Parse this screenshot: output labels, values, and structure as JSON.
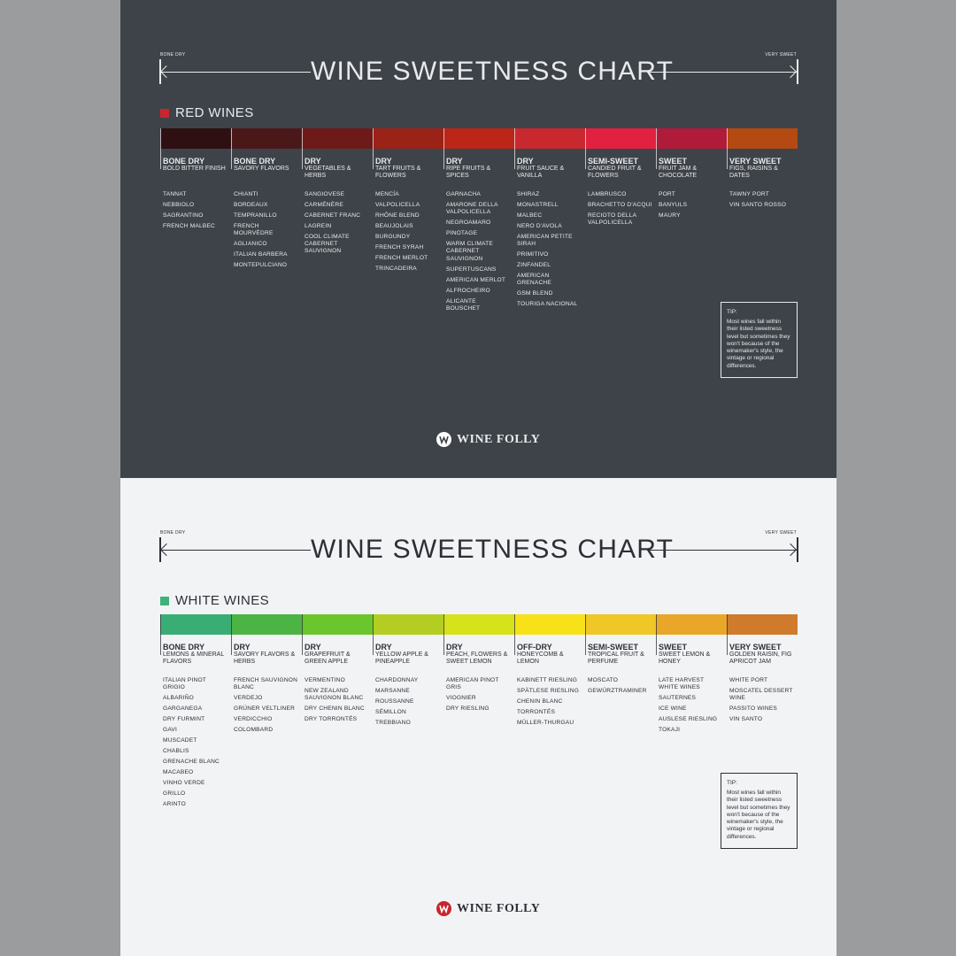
{
  "red": {
    "scale_left": "BONE DRY",
    "scale_right": "VERY SWEET",
    "title": "WINE SWEETNESS CHART",
    "section_title": "RED WINES",
    "section_color": "#c8262d",
    "columns": [
      {
        "level": "BONE DRY",
        "desc": "BOLD BITTER FINISH",
        "color": "#2e0f12",
        "wines": [
          "TANNAT",
          "NEBBIOLO",
          "SAGRANTINO",
          "FRENCH MALBEC"
        ]
      },
      {
        "level": "BONE DRY",
        "desc": "SAVORY FLAVORS",
        "color": "#4b1819",
        "wines": [
          "CHIANTI",
          "BORDEAUX",
          "TEMPRANILLO",
          "FRENCH MOURVÈDRE",
          "AGLIANICO",
          "ITALIAN BARBERA",
          "MONTEPULCIANO"
        ]
      },
      {
        "level": "DRY",
        "desc": "VEGETABLES & HERBS",
        "color": "#6e1a19",
        "wines": [
          "SANGIOVESE",
          "CARMÉNÈRE",
          "CABERNET FRANC",
          "LAGREIN",
          "COOL CLIMATE CABERNET SAUVIGNON"
        ]
      },
      {
        "level": "DRY",
        "desc": "TART FRUITS & FLOWERS",
        "color": "#9a2217",
        "wines": [
          "MENCÍA",
          "VALPOLICELLA",
          "RHÔNE BLEND",
          "BEAUJOLAIS",
          "BURGUNDY",
          "FRENCH SYRAH",
          "FRENCH MERLOT",
          "TRINCADEIRA"
        ]
      },
      {
        "level": "DRY",
        "desc": "RIPE FRUITS & SPICES",
        "color": "#bb2618",
        "wines": [
          "GARNACHA",
          "AMARONE DELLA VALPOLICELLA",
          "NEGROAMARO",
          "PINOTAGE",
          "WARM CLIMATE CABERNET SAUVIGNON",
          "SUPERTUSCANS",
          "AMERICAN MERLOT",
          "ALFROCHEIRO",
          "ALICANTE BOUSCHET"
        ]
      },
      {
        "level": "DRY",
        "desc": "FRUIT SAUCE & VANILLA",
        "color": "#c9282f",
        "wines": [
          "SHIRAZ",
          "MONASTRELL",
          "MALBEC",
          "NERO D'AVOLA",
          "AMERICAN PETITE SIRAH",
          "PRIMITIVO",
          "ZINFANDEL",
          "AMERICAN GRENACHE",
          "GSM BLEND",
          "TOURIGA NACIONAL"
        ]
      },
      {
        "level": "SEMI-SWEET",
        "desc": "CANDIED FRUIT & FLOWERS",
        "color": "#e2203f",
        "wines": [
          "LAMBRUSCO",
          "BRACHETTO D'ACQUI",
          "RECIOTO DELLA VALPOLICELLA"
        ]
      },
      {
        "level": "SWEET",
        "desc": "FRUIT JAM & CHOCOLATE",
        "color": "#b01b3a",
        "wines": [
          "PORT",
          "BANYULS",
          "MAURY"
        ]
      },
      {
        "level": "VERY SWEET",
        "desc": "FIGS, RAISINS & DATES",
        "color": "#b44a12",
        "wines": [
          "TAWNY PORT",
          "VIN SANTO ROSSO"
        ]
      }
    ],
    "tip_heading": "TIP:",
    "tip_body": "Most wines fall within their listed sweetness level but sometimes they won't because of the winemaker's style, the vintage or regional differences.",
    "logo": "WINE FOLLY"
  },
  "white": {
    "scale_left": "BONE DRY",
    "scale_right": "VERY SWEET",
    "title": "WINE SWEETNESS CHART",
    "section_title": "WHITE WINES",
    "section_color": "#3fb27a",
    "columns": [
      {
        "level": "BONE DRY",
        "desc": "LEMONS & MINERAL FLAVORS",
        "color": "#3aad74",
        "wines": [
          "ITALIAN PINOT GRIGIO",
          "ALBARIÑO",
          "GARGANEGA",
          "DRY FURMINT",
          "GAVI",
          "MUSCADET",
          "CHABLIS",
          "GRENACHE BLANC",
          "MACABEO",
          "VINHO VERDE",
          "GRILLO",
          "ARINTO"
        ]
      },
      {
        "level": "DRY",
        "desc": "SAVORY FLAVORS & HERBS",
        "color": "#4cb444",
        "wines": [
          "FRENCH SAUVIGNON BLANC",
          "VERDEJO",
          "GRÜNER VELTLINER",
          "VERDICCHIO",
          "COLOMBARD"
        ]
      },
      {
        "level": "DRY",
        "desc": "GRAPEFRUIT & GREEN APPLE",
        "color": "#6bc52c",
        "wines": [
          "VERMENTINO",
          "NEW ZEALAND SAUVIGNON BLANC",
          "DRY CHENIN BLANC",
          "DRY TORRONTÉS"
        ]
      },
      {
        "level": "DRY",
        "desc": "YELLOW APPLE & PINEAPPLE",
        "color": "#b3cd22",
        "wines": [
          "CHARDONNAY",
          "MARSANNE",
          "ROUSSANNE",
          "SÉMILLON",
          "TREBBIANO"
        ]
      },
      {
        "level": "DRY",
        "desc": "PEACH, FLOWERS & SWEET LEMON",
        "color": "#d6e21a",
        "wines": [
          "AMERICAN PINOT GRIS",
          "VIOGNIER",
          "DRY RIESLING"
        ]
      },
      {
        "level": "OFF-DRY",
        "desc": "HONEYCOMB & LEMON",
        "color": "#f7e21a",
        "wines": [
          "KABINETT RIESLING",
          "SPÄTLESE RIESLING",
          "CHENIN BLANC",
          "TORRONTÉS",
          "MÜLLER-THURGAU"
        ]
      },
      {
        "level": "SEMI-SWEET",
        "desc": "TROPICAL FRUIT & PERFUME",
        "color": "#efc726",
        "wines": [
          "MOSCATO",
          "GEWÜRZTRAMINER"
        ]
      },
      {
        "level": "SWEET",
        "desc": "SWEET LEMON & HONEY",
        "color": "#eaa629",
        "wines": [
          "LATE HARVEST WHITE WINES",
          "SAUTERNES",
          "ICE WINE",
          "AUSLESE RIESLING",
          "TOKAJI"
        ]
      },
      {
        "level": "VERY SWEET",
        "desc": "GOLDEN RAISIN, FIG APRICOT JAM",
        "color": "#cf7a2c",
        "wines": [
          "WHITE PORT",
          "MOSCATEL DESSERT WINE",
          "PASSITO WINES",
          "VIN SANTO"
        ]
      }
    ],
    "tip_heading": "TIP:",
    "tip_body": "Most wines fall within their listed sweetness level but sometimes they won't because of the winemaker's style, the vintage or regional differences.",
    "logo": "WINE FOLLY"
  },
  "colors": {
    "red_panel_bg": "#3e4349",
    "white_panel_bg": "#f2f3f5",
    "logo_mark_red": "#c8262d"
  },
  "icons": [
    "bone-dry-arrow-icon",
    "very-sweet-arrow-icon",
    "wine-folly-logo-icon"
  ]
}
